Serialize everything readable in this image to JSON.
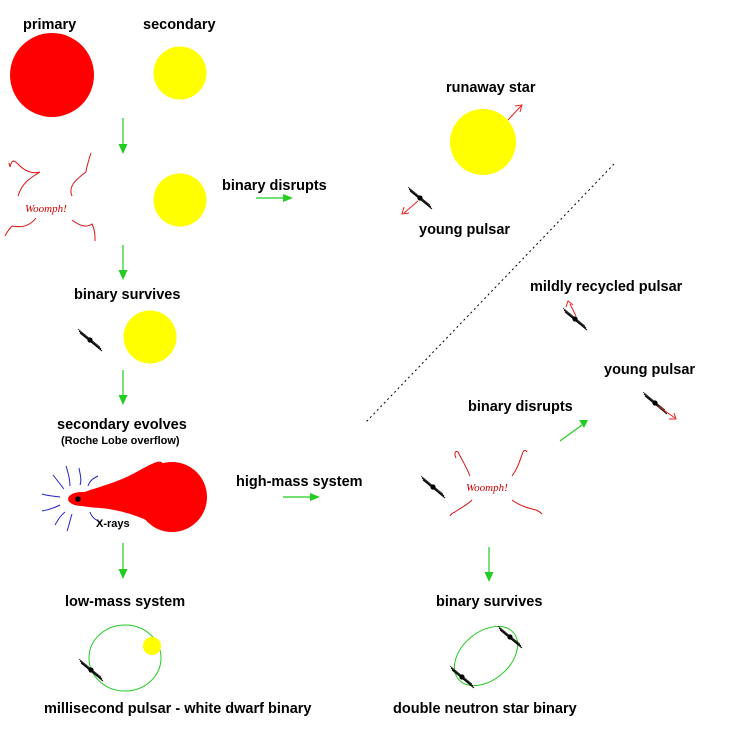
{
  "labels": {
    "primary": "primary",
    "secondary": "secondary",
    "binary_disrupts_1": "binary disrupts",
    "runaway_star": "runaway star",
    "young_pulsar_1": "young pulsar",
    "binary_survives_1": "binary survives",
    "mildly_recycled_pulsar": "mildly recycled pulsar",
    "young_pulsar_2": "young pulsar",
    "secondary_evolves": "secondary evolves",
    "roche_lobe_overflow": "(Roche Lobe overflow)",
    "binary_disrupts_2": "binary disrupts",
    "high_mass_system": "high-mass system",
    "xrays": "X-rays",
    "low_mass_system": "low-mass system",
    "binary_survives_2": "binary survives",
    "msp_wd_binary": "millisecond pulsar - white dwarf binary",
    "dns_binary": "double neutron star binary",
    "woomph_1": "Woomph!",
    "woomph_2": "Woomph!"
  },
  "colors": {
    "primary_star": "#ff0000",
    "secondary_star": "#ffff00",
    "flow_arrow": "#22cc22",
    "kick_arrow": "#ee2222",
    "xray_lines": "#2222cc",
    "orbit": "#22cc22"
  }
}
